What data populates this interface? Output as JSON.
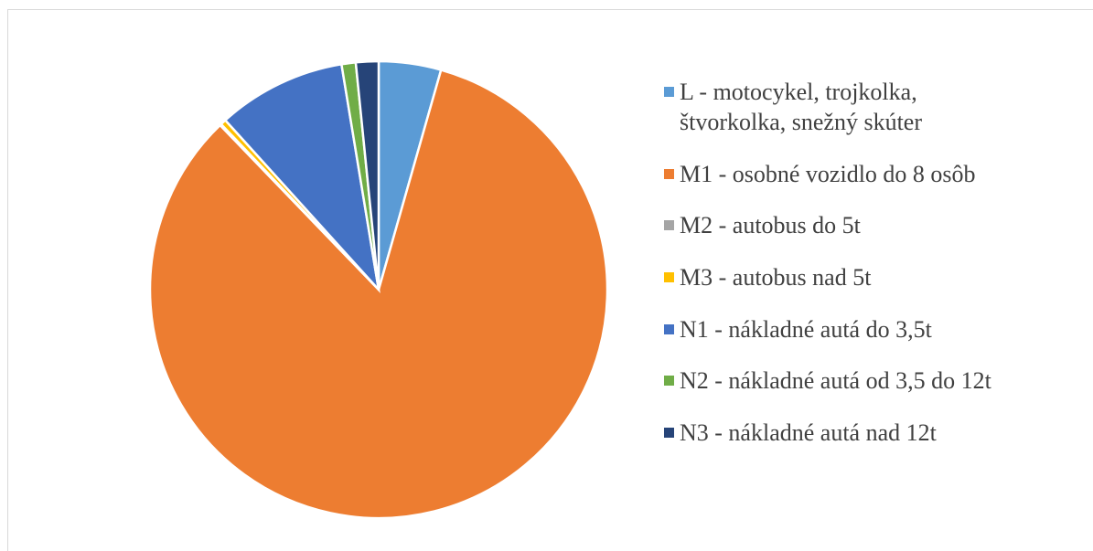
{
  "chart_data": {
    "type": "pie",
    "categories": [
      "L - motocykel, trojkolka, štvorkolka, snežný skúter",
      "M1 - osobné vozidlo do 8 osôb",
      "M2 - autobus do 5t",
      "M3 - autobus nad 5t",
      "N1 - nákladné autá do 3,5t",
      "N2 - nákladné autá od 3,5 do 12t",
      "N3 - nákladné autá nad 12t"
    ],
    "values": [
      4.4,
      83.4,
      0.1,
      0.4,
      9.1,
      1.0,
      1.6
    ],
    "colors": [
      "#5b9bd5",
      "#ed7d31",
      "#a5a5a5",
      "#ffc000",
      "#4472c4",
      "#70ad47",
      "#264478"
    ],
    "legend": "right"
  }
}
